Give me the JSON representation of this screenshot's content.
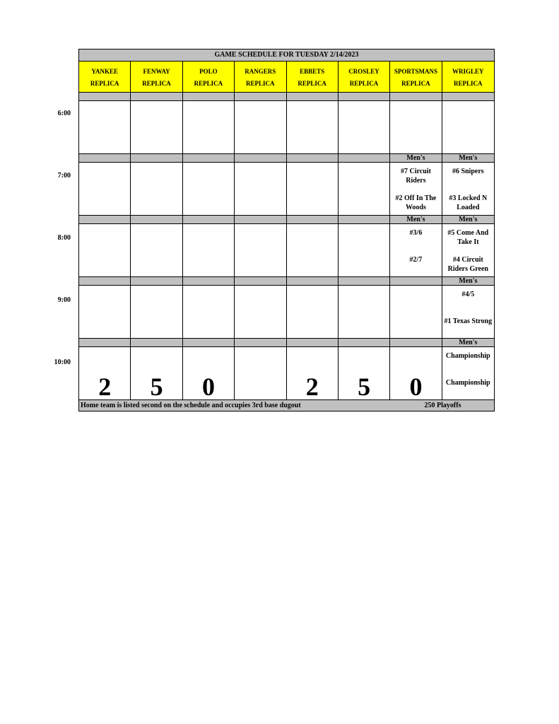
{
  "title": "GAME SCHEDULE FOR TUESDAY 2/14/2023",
  "fields": [
    {
      "name": "YANKEE",
      "sub": "REPLICA"
    },
    {
      "name": "FENWAY",
      "sub": "REPLICA"
    },
    {
      "name": "POLO",
      "sub": "REPLICA"
    },
    {
      "name": "RANGERS",
      "sub": "REPLICA"
    },
    {
      "name": "EBBETS",
      "sub": "REPLICA"
    },
    {
      "name": "CROSLEY",
      "sub": "REPLICA"
    },
    {
      "name": "SPORTSMANS",
      "sub": "REPLICA"
    },
    {
      "name": "WRIGLEY",
      "sub": "REPLICA"
    }
  ],
  "slots": [
    {
      "time": "6:00",
      "bands": [
        "",
        "",
        "",
        "",
        "",
        "",
        "",
        ""
      ],
      "cells": [
        {},
        {},
        {},
        {},
        {},
        {},
        {},
        {}
      ]
    },
    {
      "time": "7:00",
      "bands": [
        "",
        "",
        "",
        "",
        "",
        "",
        "Men's",
        "Men's"
      ],
      "cells": [
        {},
        {},
        {},
        {},
        {},
        {},
        {
          "top": "#7 Circuit Riders",
          "bot": "#2 Off In The Woods"
        },
        {
          "top": "#6 Snipers",
          "bot": "#3 Locked N Loaded"
        }
      ]
    },
    {
      "time": "8:00",
      "bands": [
        "",
        "",
        "",
        "",
        "",
        "",
        "Men's",
        "Men's"
      ],
      "cells": [
        {},
        {},
        {},
        {},
        {},
        {},
        {
          "top": "#3/6",
          "bot": "#2/7"
        },
        {
          "top": "#5 Come And Take It",
          "bot": "#4 Circuit Riders Green"
        }
      ]
    },
    {
      "time": "9:00",
      "bands": [
        "",
        "",
        "",
        "",
        "",
        "",
        "",
        "Men's"
      ],
      "cells": [
        {},
        {},
        {},
        {},
        {},
        {},
        {},
        {
          "top": "#4/5",
          "bot": "#1 Texas Strong"
        }
      ]
    },
    {
      "time": "10:00",
      "bands": [
        "",
        "",
        "",
        "",
        "",
        "",
        "",
        "Men's"
      ],
      "cells": [
        {
          "big": "2"
        },
        {
          "big": "5"
        },
        {
          "big": "0"
        },
        {},
        {
          "big": "2"
        },
        {
          "big": "5"
        },
        {
          "big": "0"
        },
        {
          "top": "Championship",
          "bot": "Championship"
        }
      ]
    }
  ],
  "footer": {
    "note": "Home team is listed second on the schedule and occupies 3rd base dugout",
    "label": "250 Playoffs"
  },
  "colors": {
    "header": "#ffff00",
    "band": "#c0c0c0"
  }
}
